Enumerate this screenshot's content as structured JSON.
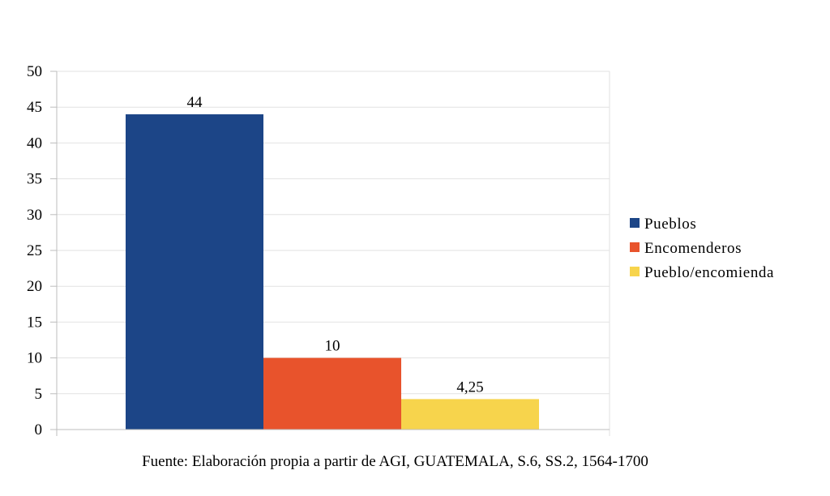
{
  "chart_data": {
    "type": "bar",
    "title": "",
    "xlabel": "",
    "ylabel": "",
    "ylim": [
      0,
      50
    ],
    "yticks": [
      0,
      5,
      10,
      15,
      20,
      25,
      30,
      35,
      40,
      45,
      50
    ],
    "grid": true,
    "legend_position": "right",
    "series": [
      {
        "name": "Pueblos",
        "value": 44,
        "label": "44",
        "color": "#1c4587"
      },
      {
        "name": "Encomenderos",
        "value": 10,
        "label": "10",
        "color": "#e8532c"
      },
      {
        "name": "Pueblo/encomienda",
        "value": 4.25,
        "label": "4,25",
        "color": "#f7d44c"
      }
    ]
  },
  "caption": "Fuente: Elaboración propia a partir de AGI, GUATEMALA, S.6, SS.2, 1564-1700"
}
